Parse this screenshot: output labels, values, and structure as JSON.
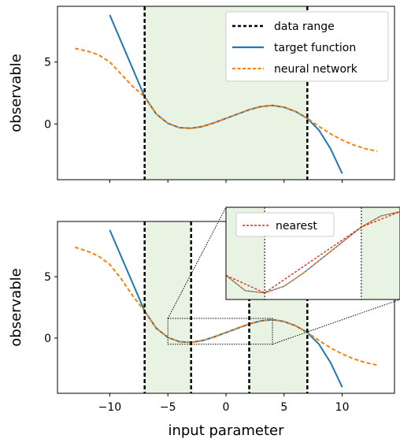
{
  "chart_data": [
    {
      "type": "line",
      "ylabel": "observable",
      "xlim": [
        -14.5,
        14.5
      ],
      "ylim": [
        -4.5,
        9.5
      ],
      "yticks": [
        0,
        5
      ],
      "shaded": [
        [
          -7,
          7
        ]
      ],
      "vlines": [
        -7,
        7
      ],
      "legend": {
        "placement": "top-right",
        "entries": [
          "data range",
          "target function",
          "neural network"
        ]
      },
      "series": [
        {
          "name": "target function",
          "color": "#1f77b4",
          "style": "solid",
          "x": [
            -10,
            -9,
            -8,
            -7,
            -6,
            -5,
            -4,
            -3,
            -2,
            -1,
            0,
            1,
            2,
            3,
            4,
            5,
            6,
            7,
            8,
            9,
            10
          ],
          "y": [
            8.8,
            6.6,
            4.4,
            2.2,
            0.8,
            0.05,
            -0.3,
            -0.35,
            -0.2,
            0.1,
            0.45,
            0.8,
            1.15,
            1.4,
            1.5,
            1.35,
            1.0,
            0.45,
            -0.5,
            -2.0,
            -4.0
          ]
        },
        {
          "name": "neural network",
          "color": "#ff7f0e",
          "style": "dashed",
          "x": [
            -13,
            -12,
            -11,
            -10,
            -9,
            -8,
            -7,
            -6,
            -5,
            -4,
            -3,
            -2,
            -1,
            0,
            1,
            2,
            3,
            4,
            5,
            6,
            7,
            8,
            9,
            10,
            11,
            12,
            13
          ],
          "y": [
            6.1,
            5.9,
            5.6,
            5.0,
            4.0,
            3.0,
            2.2,
            0.8,
            0.05,
            -0.3,
            -0.35,
            -0.2,
            0.1,
            0.45,
            0.8,
            1.15,
            1.4,
            1.5,
            1.35,
            1.0,
            0.45,
            -0.2,
            -0.8,
            -1.3,
            -1.7,
            -2.0,
            -2.2
          ]
        }
      ]
    },
    {
      "type": "line",
      "xlabel": "input parameter",
      "ylabel": "observable",
      "xlim": [
        -14.5,
        14.5
      ],
      "ylim": [
        -4.5,
        9.5
      ],
      "xticks": [
        -10,
        -5,
        0,
        5,
        10
      ],
      "yticks": [
        0,
        5
      ],
      "shaded": [
        [
          -7,
          -3
        ],
        [
          2,
          7
        ]
      ],
      "vlines": [
        -7,
        -3,
        2,
        7
      ],
      "zoom_box": {
        "xlim": [
          -5,
          4
        ],
        "ylim": [
          -0.5,
          1.6
        ]
      },
      "series": [
        {
          "name": "target function",
          "color": "#1f77b4",
          "style": "solid",
          "x": [
            -10,
            -9,
            -8,
            -7,
            -6,
            -5,
            -4,
            -3,
            -2,
            -1,
            0,
            1,
            2,
            3,
            4,
            5,
            6,
            7,
            8,
            9,
            10
          ],
          "y": [
            8.8,
            6.6,
            4.4,
            2.2,
            0.8,
            0.05,
            -0.3,
            -0.35,
            -0.2,
            0.1,
            0.45,
            0.8,
            1.15,
            1.4,
            1.5,
            1.35,
            1.0,
            0.45,
            -0.5,
            -2.0,
            -4.0
          ]
        },
        {
          "name": "neural network",
          "color": "#ff7f0e",
          "style": "dashed",
          "x": [
            -13,
            -12,
            -11,
            -10,
            -9,
            -8,
            -7,
            -6,
            -5,
            -4,
            -3,
            -2,
            -1,
            0,
            1,
            2,
            3,
            4,
            5,
            6,
            7,
            8,
            9,
            10,
            11,
            12,
            13
          ],
          "y": [
            7.4,
            7.1,
            6.7,
            6.0,
            4.8,
            3.4,
            2.2,
            0.8,
            0.05,
            -0.3,
            -0.35,
            -0.2,
            0.1,
            0.45,
            0.8,
            1.15,
            1.4,
            1.5,
            1.35,
            1.0,
            0.45,
            -0.2,
            -0.8,
            -1.3,
            -1.7,
            -2.0,
            -2.2
          ]
        }
      ],
      "inset": {
        "xlim": [
          -5,
          4
        ],
        "ylim": [
          -0.5,
          1.6
        ],
        "vlines": [
          -3,
          2
        ],
        "shaded": [
          [
            -3,
            2
          ]
        ],
        "legend": {
          "placement": "top-left",
          "entries": [
            "nearest"
          ]
        },
        "series": [
          {
            "name": "nearest",
            "color": "#d62728",
            "style": "dashed",
            "x": [
              -5,
              -3,
              2,
              4
            ],
            "y": [
              0.05,
              -0.35,
              1.15,
              1.5
            ]
          }
        ]
      }
    }
  ]
}
